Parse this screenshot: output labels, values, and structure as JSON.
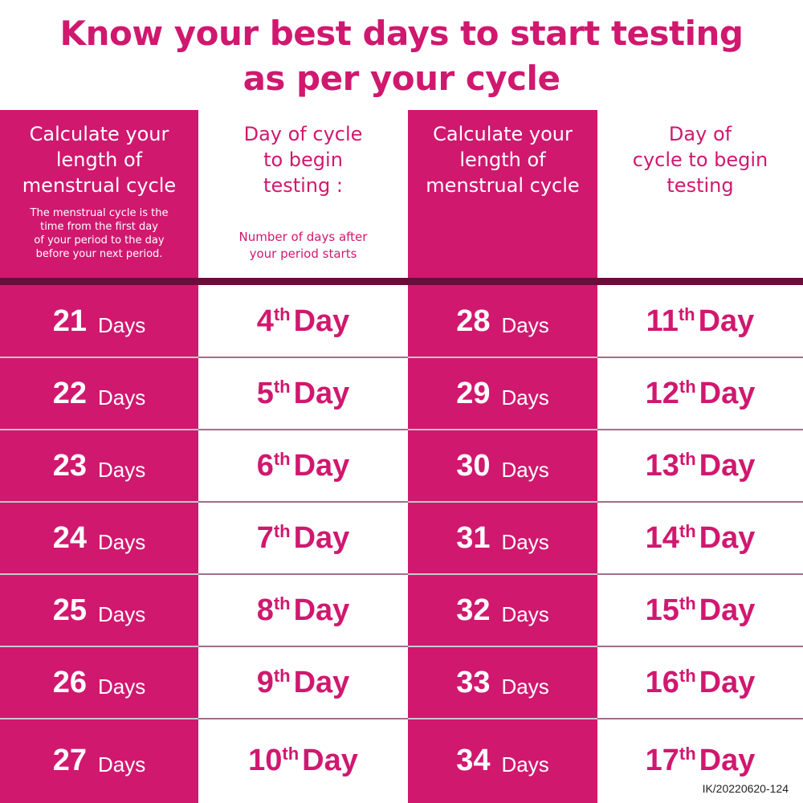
{
  "title_line1": "Know your best days to start testing",
  "title_line2": "as per your cycle",
  "headers": {
    "left_length": {
      "h1": "Calculate your",
      "h2": "length of",
      "h3": "menstrual cycle",
      "sub": [
        "The menstrual cycle is the",
        "time from the first day",
        "of your period to the day",
        "before your next period."
      ]
    },
    "left_day": {
      "h1": "Day of cycle",
      "h2": "to begin",
      "h3": "testing :",
      "sub": [
        "Number of days after",
        "your period starts"
      ]
    },
    "right_length": {
      "h1": "Calculate your",
      "h2": "length of",
      "h3": "menstrual cycle"
    },
    "right_day": {
      "h1": "Day of",
      "h2": "cycle to begin",
      "h3": "testing"
    }
  },
  "days_label": "Days",
  "day_label": "Day",
  "rows": [
    {
      "l_len": "21",
      "l_day": "4",
      "l_suf": "th",
      "r_len": "28",
      "r_day": "11",
      "r_suf": "th"
    },
    {
      "l_len": "22",
      "l_day": "5",
      "l_suf": "th",
      "r_len": "29",
      "r_day": "12",
      "r_suf": "th"
    },
    {
      "l_len": "23",
      "l_day": "6",
      "l_suf": "th",
      "r_len": "30",
      "r_day": "13",
      "r_suf": "th"
    },
    {
      "l_len": "24",
      "l_day": "7",
      "l_suf": "th",
      "r_len": "31",
      "r_day": "14",
      "r_suf": "th"
    },
    {
      "l_len": "25",
      "l_day": "8",
      "l_suf": "th",
      "r_len": "32",
      "r_day": "15",
      "r_suf": "th"
    },
    {
      "l_len": "26",
      "l_day": "9",
      "l_suf": "th",
      "r_len": "33",
      "r_day": "16",
      "r_suf": "th"
    },
    {
      "l_len": "27",
      "l_day": "10",
      "l_suf": "th",
      "r_len": "34",
      "r_day": "17",
      "r_suf": "th"
    }
  ],
  "reference_code": "IK/20220620-124",
  "colors": {
    "accent": "#d0186f",
    "band": "#6a0d3a"
  }
}
